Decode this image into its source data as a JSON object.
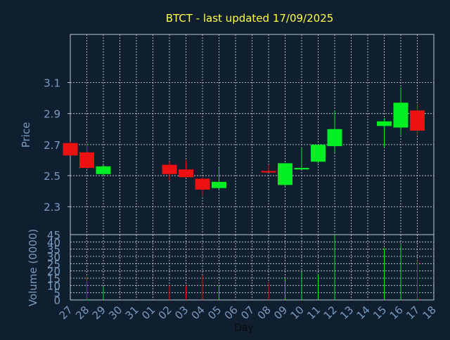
{
  "colors": {
    "background": "#0f1f30",
    "title": "#ffff44",
    "axis_text": "#7a9bbf",
    "grid": "#d8dde6",
    "frame": "#b8c4d4",
    "up": "#00ee22",
    "down": "#ee1111"
  },
  "chart_data": {
    "type": "candlestick",
    "title": "BTCT - last updated 17/09/2025",
    "xlabel": "Day",
    "price_panel": {
      "ylabel": "Price",
      "ylim": [
        2.12,
        3.41
      ],
      "yticks": [
        "2.3",
        "2.5",
        "2.7",
        "2.9",
        "3.1"
      ],
      "grid": true
    },
    "volume_panel": {
      "ylabel": "Volume (0000)",
      "ylim": [
        0,
        45
      ],
      "yticks": [
        "0",
        "5",
        "10",
        "15",
        "20",
        "25",
        "30",
        "35",
        "40",
        "45"
      ],
      "grid": true
    },
    "x_ticks": [
      "27",
      "28",
      "29",
      "30",
      "31",
      "01",
      "02",
      "03",
      "04",
      "05",
      "06",
      "07",
      "08",
      "09",
      "10",
      "11",
      "12",
      "13",
      "14",
      "15",
      "16",
      "17",
      "18"
    ],
    "candles": [
      {
        "day": "27",
        "open": 2.71,
        "high": 2.72,
        "low": 2.63,
        "close": 2.63
      },
      {
        "day": "28",
        "open": 2.65,
        "high": 2.71,
        "low": 2.54,
        "close": 2.55
      },
      {
        "day": "29",
        "open": 2.51,
        "high": 2.57,
        "low": 2.5,
        "close": 2.56
      },
      {
        "day": "02",
        "open": 2.57,
        "high": 2.59,
        "low": 2.47,
        "close": 2.51
      },
      {
        "day": "03",
        "open": 2.54,
        "high": 2.6,
        "low": 2.49,
        "close": 2.49
      },
      {
        "day": "04",
        "open": 2.48,
        "high": 2.49,
        "low": 2.37,
        "close": 2.41
      },
      {
        "day": "05",
        "open": 2.42,
        "high": 2.55,
        "low": 2.41,
        "close": 2.46
      },
      {
        "day": "08",
        "open": 2.53,
        "high": 2.57,
        "low": 2.52,
        "close": 2.52
      },
      {
        "day": "09",
        "open": 2.44,
        "high": 2.58,
        "low": 2.43,
        "close": 2.58
      },
      {
        "day": "10",
        "open": 2.54,
        "high": 2.68,
        "low": 2.54,
        "close": 2.55
      },
      {
        "day": "11",
        "open": 2.59,
        "high": 2.7,
        "low": 2.58,
        "close": 2.7
      },
      {
        "day": "12",
        "open": 2.69,
        "high": 2.92,
        "low": 2.65,
        "close": 2.8
      },
      {
        "day": "15",
        "open": 2.82,
        "high": 2.87,
        "low": 2.68,
        "close": 2.85
      },
      {
        "day": "16",
        "open": 2.81,
        "high": 3.07,
        "low": 2.76,
        "close": 2.97
      },
      {
        "day": "17",
        "open": 2.92,
        "high": 2.96,
        "low": 2.76,
        "close": 2.79
      }
    ],
    "volume": [
      {
        "day": "27",
        "value": 0,
        "dir": "down"
      },
      {
        "day": "28",
        "value": 16,
        "dir": "down"
      },
      {
        "day": "29",
        "value": 9,
        "dir": "up"
      },
      {
        "day": "02",
        "value": 10,
        "dir": "down"
      },
      {
        "day": "03",
        "value": 10,
        "dir": "down"
      },
      {
        "day": "04",
        "value": 17,
        "dir": "down"
      },
      {
        "day": "05",
        "value": 10,
        "dir": "up"
      },
      {
        "day": "08",
        "value": 12,
        "dir": "down"
      },
      {
        "day": "09",
        "value": 15,
        "dir": "up"
      },
      {
        "day": "10",
        "value": 19,
        "dir": "up"
      },
      {
        "day": "11",
        "value": 18,
        "dir": "up"
      },
      {
        "day": "12",
        "value": 45,
        "dir": "up"
      },
      {
        "day": "15",
        "value": 35,
        "dir": "up"
      },
      {
        "day": "16",
        "value": 38,
        "dir": "up"
      },
      {
        "day": "17",
        "value": 27,
        "dir": "down"
      }
    ]
  }
}
